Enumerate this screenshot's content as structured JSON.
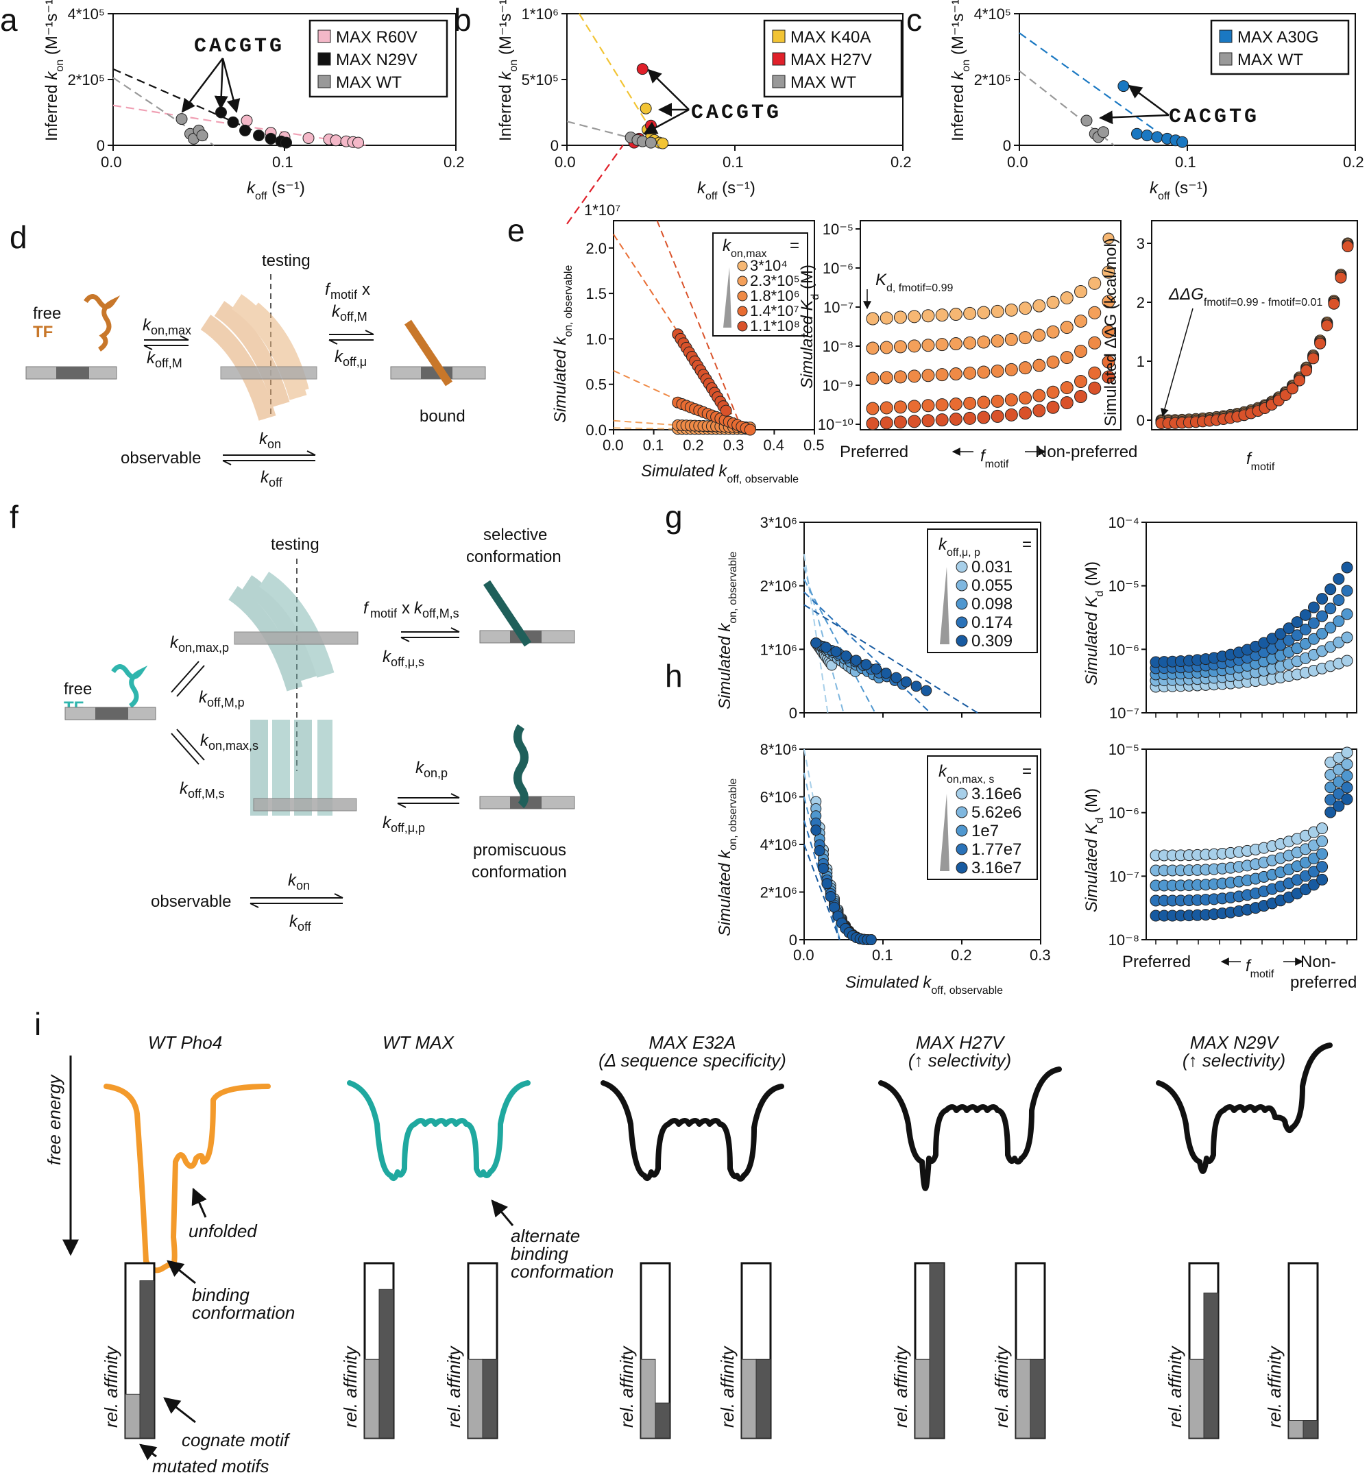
{
  "panel_labels": [
    "a",
    "b",
    "c",
    "d",
    "e",
    "f",
    "g",
    "h",
    "i"
  ],
  "colors": {
    "pink": "#f4b8c8",
    "black": "#111111",
    "gray": "#999999",
    "yellow": "#f2c434",
    "red": "#e0202a",
    "blue": "#1a78c2",
    "orange": "#f29a2e",
    "teal": "#1ea9a2",
    "tfOrange": "#c8772a",
    "tfTeal": "#2fb5ad"
  },
  "common": {
    "inferred_kon": "Inferred k",
    "kon_sub": "on",
    "kon_units": "(M⁻¹s⁻¹)",
    "koff": "k",
    "koff_sub": "off",
    "koff_units": "(s⁻¹)",
    "cacgtg": "CACGTG"
  },
  "chart_data": [
    {
      "id": "a",
      "type": "scatter",
      "xlim": [
        0,
        0.2
      ],
      "ylim": [
        0,
        400000
      ],
      "xticks": [
        "0.0",
        "0.1",
        "0.2"
      ],
      "yticks": [
        "0",
        "2*10⁵",
        "4*10⁵"
      ],
      "legend": [
        "MAX R60V",
        "MAX N29V",
        "MAX WT"
      ],
      "series": [
        {
          "name": "MAX R60V",
          "color": "#f4b8c8",
          "x": [
            0.078,
            0.092,
            0.1,
            0.114,
            0.126,
            0.13,
            0.136,
            0.14,
            0.143
          ],
          "y": [
            75000,
            38000,
            25000,
            22000,
            18000,
            15000,
            12000,
            10000,
            8000
          ]
        },
        {
          "name": "MAX N29V",
          "color": "#111111",
          "x": [
            0.063,
            0.07,
            0.077,
            0.085,
            0.092,
            0.098,
            0.101
          ],
          "y": [
            100000,
            70000,
            45000,
            30000,
            20000,
            12000,
            8000
          ]
        },
        {
          "name": "MAX WT",
          "color": "#999999",
          "x": [
            0.04,
            0.045,
            0.047,
            0.05,
            0.052
          ],
          "y": [
            80000,
            35000,
            20000,
            45000,
            30000
          ]
        }
      ]
    },
    {
      "id": "b",
      "type": "scatter",
      "xlim": [
        0,
        0.2
      ],
      "ylim": [
        0,
        1000000
      ],
      "xticks": [
        "0.0",
        "0.1",
        "0.2"
      ],
      "yticks": [
        "0",
        "5*10⁵",
        "1*10⁶"
      ],
      "legend": [
        "MAX K40A",
        "MAX H27V",
        "MAX WT"
      ],
      "series": [
        {
          "name": "MAX K40A",
          "color": "#f2c434",
          "x": [
            0.047,
            0.048,
            0.05,
            0.052,
            0.055,
            0.057
          ],
          "y": [
            280000,
            120000,
            60000,
            40000,
            20000,
            15000
          ]
        },
        {
          "name": "MAX H27V",
          "color": "#e0202a",
          "x": [
            0.045,
            0.05,
            0.04,
            0.043
          ],
          "y": [
            580000,
            150000,
            20000,
            50000
          ]
        },
        {
          "name": "MAX WT",
          "color": "#999999",
          "x": [
            0.038,
            0.042,
            0.045,
            0.05
          ],
          "y": [
            60000,
            40000,
            30000,
            20000
          ]
        }
      ]
    },
    {
      "id": "c",
      "type": "scatter",
      "xlim": [
        0,
        0.2
      ],
      "ylim": [
        0,
        400000
      ],
      "xticks": [
        "0.0",
        "0.1",
        "0.2"
      ],
      "yticks": [
        "0",
        "2*10⁵",
        "4*10⁵"
      ],
      "legend": [
        "MAX A30G",
        "MAX WT"
      ],
      "series": [
        {
          "name": "MAX A30G",
          "color": "#1a78c2",
          "x": [
            0.062,
            0.07,
            0.076,
            0.082,
            0.088,
            0.093,
            0.097
          ],
          "y": [
            180000,
            35000,
            30000,
            25000,
            20000,
            15000,
            10000
          ]
        },
        {
          "name": "MAX WT",
          "color": "#999999",
          "x": [
            0.04,
            0.045,
            0.047,
            0.05
          ],
          "y": [
            75000,
            35000,
            25000,
            40000
          ]
        }
      ]
    },
    {
      "id": "e1",
      "type": "scatter",
      "title_exp": "1*10⁷",
      "xlim": [
        0,
        0.5
      ],
      "ylim": [
        0,
        2.3
      ],
      "xlabel": "Simulated k",
      "xlabel_sub": "off, observable",
      "ylabel": "Simulated k",
      "ylabel_sub": "on, observable",
      "xticks": [
        "0.0",
        "0.1",
        "0.2",
        "0.3",
        "0.4",
        "0.5"
      ],
      "yticks": [
        "0.0",
        "0.5",
        "1.0",
        "1.5",
        "2.0"
      ],
      "legend_title": "k",
      "legend_title_sub": "on,max",
      "legend_title_eq": "=",
      "legend": [
        "3*10⁴",
        "2.3*10⁵",
        "1.8*10⁶",
        "1.4*10⁷",
        "1.1*10⁸"
      ]
    },
    {
      "id": "e2",
      "type": "scatter",
      "ylabel": "Simulated K",
      "ylabel_sub": "d",
      "ylabel_units": "(M)",
      "yticks": [
        "10⁻¹⁰",
        "10⁻⁹",
        "10⁻⁸",
        "10⁻⁷",
        "10⁻⁶",
        "10⁻⁵"
      ],
      "xlabel_left": "Preferred",
      "xlabel_mid": "f",
      "xlabel_mid_sub": "motif",
      "xlabel_right": "Non-preferred",
      "annotation": "K",
      "annotation_sub": "d, fmotif=0.99"
    },
    {
      "id": "e3",
      "type": "scatter",
      "ylabel": "Simulated ΔΔG (kcal/mol)",
      "yticks": [
        "0",
        "1",
        "2",
        "3"
      ],
      "xlabel": "f",
      "xlabel_sub": "motif",
      "annotation": "ΔΔG",
      "annotation_sub": "fmotif=0.99 - fmotif=0.01"
    },
    {
      "id": "g1",
      "type": "scatter",
      "xlim": [
        0,
        0.3
      ],
      "ylim": [
        0,
        3000000
      ],
      "ylabel": "Simulated k",
      "ylabel_sub": "on, observable",
      "yticks": [
        "0",
        "1*10⁶",
        "2*10⁶",
        "3*10⁶"
      ],
      "legend_title": "k",
      "legend_title_sub": "off,μ, p",
      "legend_title_eq": "=",
      "legend": [
        "0.031",
        "0.055",
        "0.098",
        "0.174",
        "0.309"
      ]
    },
    {
      "id": "g2",
      "type": "scatter",
      "ylabel": "Simulated K",
      "ylabel_sub": "d",
      "ylabel_units": "(M)",
      "yticks": [
        "10⁻⁷",
        "10⁻⁶",
        "10⁻⁵",
        "10⁻⁴"
      ]
    },
    {
      "id": "h1",
      "type": "scatter",
      "xlim": [
        0,
        0.3
      ],
      "ylim": [
        0,
        8000000
      ],
      "xlabel": "Simulated k",
      "xlabel_sub": "off, observable",
      "ylabel": "Simulated k",
      "ylabel_sub": "on, observable",
      "xticks": [
        "0.0",
        "0.1",
        "0.2",
        "0.3"
      ],
      "yticks": [
        "0",
        "2*10⁶",
        "4*10⁶",
        "6*10⁶",
        "8*10⁶"
      ],
      "legend_title": "k",
      "legend_title_sub": "on,max, s",
      "legend_title_eq": "=",
      "legend": [
        "3.16e6",
        "5.62e6",
        "1e7",
        "1.77e7",
        "3.16e7"
      ]
    },
    {
      "id": "h2",
      "type": "scatter",
      "ylabel": "Simulated K",
      "ylabel_sub": "d",
      "ylabel_units": "(M)",
      "yticks": [
        "10⁻⁸",
        "10⁻⁷",
        "10⁻⁶",
        "10⁻⁵"
      ],
      "xlabel_left": "Preferred",
      "xlabel_mid": "f",
      "xlabel_mid_sub": "motif",
      "xlabel_right1": "Non-",
      "xlabel_right2": "preferred"
    }
  ],
  "schematic_d": {
    "testing": "testing",
    "free": "free",
    "tf": "TF",
    "bound": "bound",
    "observable": "observable",
    "kon_max": "on,max",
    "koff_M": "off,M",
    "fmotif_x": "x",
    "koff_mu": "off,μ",
    "kon": "on",
    "koff": "off"
  },
  "schematic_f": {
    "testing": "testing",
    "free": "free",
    "tf": "TF",
    "selective": "selective",
    "conformation": "conformation",
    "promiscuous": "promiscuous",
    "observable": "observable",
    "kon_max_p": "on,max,p",
    "koff_M_p": "off,M,p",
    "kon_max_s": "on,max,s",
    "koff_M_s": "off,M,s",
    "koff_M_s_top": "off,M,s",
    "koff_mu_s": "off,μ,s",
    "kon_p": "on,p",
    "koff_mu_p": "off,μ,p"
  },
  "panel_i": {
    "free_energy": "free energy",
    "titles": [
      "WT Pho4",
      "WT MAX",
      "MAX E32A",
      "MAX H27V",
      "MAX N29V"
    ],
    "subtitles": [
      "",
      "",
      "(Δ sequence specificity)",
      "(↑ selectivity)",
      "(↑ selectivity)"
    ],
    "unfolded": "unfolded",
    "binding": "binding",
    "conformation": "conformation",
    "alternate": "alternate",
    "binding2": "binding",
    "conformation2": "conformation",
    "rel_affinity": "rel. affinity",
    "cognate": "cognate motif",
    "mutated": "mutated motifs"
  }
}
